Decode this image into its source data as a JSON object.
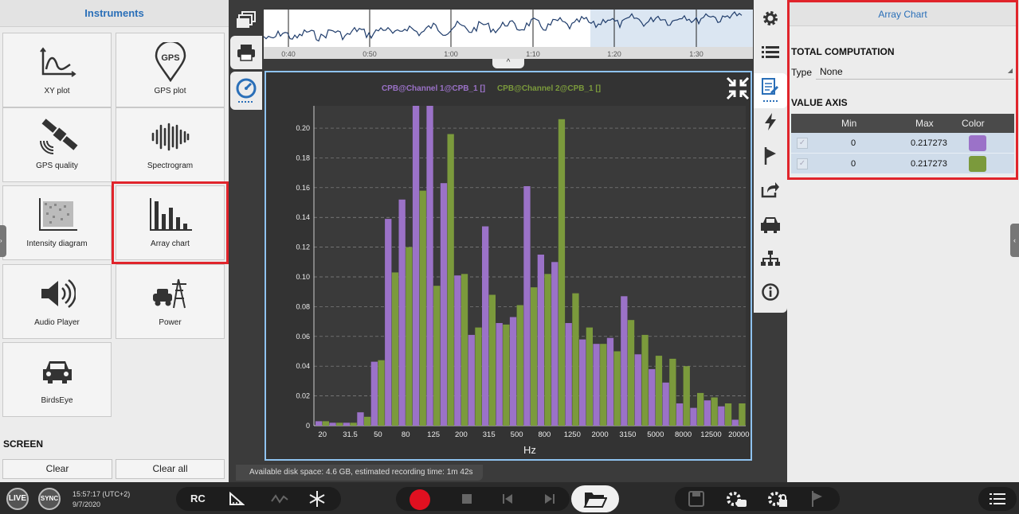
{
  "left_panel": {
    "title": "Instruments",
    "tiles": [
      {
        "label": "XY plot",
        "icon": "xy-plot-icon"
      },
      {
        "label": "GPS plot",
        "icon": "gps-plot-icon",
        "icon_text": "GPS"
      },
      {
        "label": "GPS quality",
        "icon": "satellite-icon"
      },
      {
        "label": "Spectrogram",
        "icon": "spectrogram-icon"
      },
      {
        "label": "Intensity diagram",
        "icon": "intensity-diagram-icon"
      },
      {
        "label": "Array chart",
        "icon": "array-chart-icon",
        "selected": true
      },
      {
        "label": "Audio Player",
        "icon": "speaker-icon"
      },
      {
        "label": "Power",
        "icon": "power-icon"
      },
      {
        "label": "BirdsEye",
        "icon": "car-icon"
      }
    ],
    "screen_label": "SCREEN",
    "clear_label": "Clear",
    "clear_all_label": "Clear all"
  },
  "timeline": {
    "ticks": [
      "0:40",
      "0:50",
      "1:00",
      "1:10",
      "1:20",
      "1:30"
    ]
  },
  "chart_data": {
    "type": "bar",
    "legend": [
      "CPB@Channel 1@CPB_1 []",
      "CPB@Channel 2@CPB_1 []"
    ],
    "series_colors": [
      "#9b72c8",
      "#7b9a3c"
    ],
    "xlabel": "Hz",
    "ylim": [
      0,
      0.217273
    ],
    "yticks": [
      "0",
      "0.02",
      "0.04",
      "0.06",
      "0.08",
      "0.10",
      "0.12",
      "0.14",
      "0.16",
      "0.18",
      "0.20"
    ],
    "xtick_labels": [
      "20",
      "31.5",
      "50",
      "80",
      "125",
      "200",
      "315",
      "500",
      "800",
      "1250",
      "2000",
      "3150",
      "5000",
      "8000",
      "12500",
      "20000"
    ],
    "categories": [
      "20",
      "25",
      "31.5",
      "40",
      "50",
      "63",
      "80",
      "100",
      "125",
      "160",
      "200",
      "250",
      "315",
      "400",
      "500",
      "630",
      "800",
      "1000",
      "1250",
      "1600",
      "2000",
      "2500",
      "3150",
      "4000",
      "5000",
      "6300",
      "8000",
      "10000",
      "12500",
      "16000",
      "20000"
    ],
    "series": [
      {
        "name": "CPB@Channel 1@CPB_1 []",
        "values": [
          0.003,
          0.002,
          0.002,
          0.009,
          0.043,
          0.139,
          0.152,
          0.227,
          0.217,
          0.163,
          0.101,
          0.061,
          0.134,
          0.069,
          0.073,
          0.161,
          0.115,
          0.11,
          0.069,
          0.058,
          0.055,
          0.059,
          0.087,
          0.048,
          0.038,
          0.029,
          0.015,
          0.012,
          0.017,
          0.013,
          0.004
        ]
      },
      {
        "name": "CPB@Channel 2@CPB_1 []",
        "values": [
          0.003,
          0.002,
          0.002,
          0.006,
          0.044,
          0.103,
          0.12,
          0.158,
          0.094,
          0.196,
          0.102,
          0.066,
          0.088,
          0.068,
          0.081,
          0.093,
          0.102,
          0.206,
          0.089,
          0.066,
          0.055,
          0.05,
          0.071,
          0.061,
          0.047,
          0.045,
          0.04,
          0.022,
          0.019,
          0.015,
          0.015
        ]
      }
    ]
  },
  "status": {
    "text": "Available disk space: 4.6 GB, estimated recording time: 1m 42s"
  },
  "right_panel": {
    "title": "Array Chart",
    "total_computation": "TOTAL COMPUTATION",
    "type_label": "Type",
    "type_value": "None",
    "value_axis": "VALUE AXIS",
    "columns": [
      "Min",
      "Max",
      "Color"
    ],
    "rows": [
      {
        "min": "0",
        "max": "0.217273",
        "color": "#9b72c8"
      },
      {
        "min": "0",
        "max": "0.217273",
        "color": "#7b9a3c"
      }
    ]
  },
  "bottom": {
    "live": "LIVE",
    "sync": "SYNC",
    "time": "15:57:17 (UTC+2)",
    "date": "9/7/2020",
    "rc": "RC"
  }
}
